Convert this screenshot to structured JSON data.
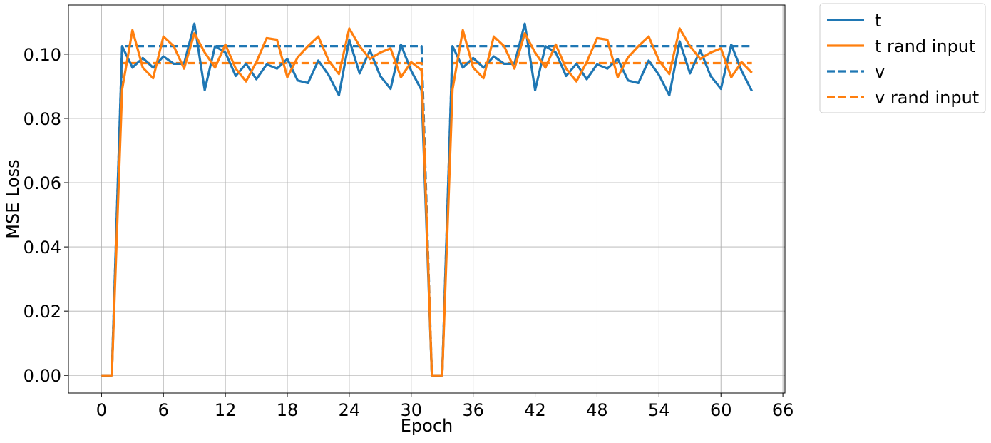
{
  "chart_data": {
    "type": "line",
    "title": "",
    "xlabel": "Epoch",
    "ylabel": "MSE Loss",
    "xlim": [
      -3.2,
      66.2
    ],
    "ylim": [
      -0.0055,
      0.1153
    ],
    "xticks": [
      0,
      6,
      12,
      18,
      24,
      30,
      36,
      42,
      48,
      54,
      60,
      66
    ],
    "xtick_labels": [
      "0",
      "6",
      "12",
      "18",
      "24",
      "30",
      "36",
      "42",
      "48",
      "54",
      "60",
      "66"
    ],
    "yticks": [
      0.0,
      0.02,
      0.04,
      0.06,
      0.08,
      0.1
    ],
    "ytick_labels": [
      "0.00",
      "0.02",
      "0.04",
      "0.06",
      "0.08",
      "0.10"
    ],
    "grid": true,
    "legend_position": "outside-top-right",
    "x": [
      0,
      1,
      2,
      3,
      4,
      5,
      6,
      7,
      8,
      9,
      10,
      11,
      12,
      13,
      14,
      15,
      16,
      17,
      18,
      19,
      20,
      21,
      22,
      23,
      24,
      25,
      26,
      27,
      28,
      29,
      30,
      31,
      32,
      33,
      34,
      35,
      36,
      37,
      38,
      39,
      40,
      41,
      42,
      43,
      44,
      45,
      46,
      47,
      48,
      49,
      50,
      51,
      52,
      53,
      54,
      55,
      56,
      57,
      58,
      59,
      60,
      61,
      62,
      63
    ],
    "series": [
      {
        "name": "t",
        "style": "solid",
        "color": "#1f77b4",
        "values": [
          0.0,
          0.0,
          0.1025,
          0.0958,
          0.0988,
          0.0958,
          0.0993,
          0.097,
          0.097,
          0.1095,
          0.0888,
          0.1025,
          0.1005,
          0.0932,
          0.097,
          0.0922,
          0.0968,
          0.0955,
          0.0985,
          0.0918,
          0.091,
          0.098,
          0.0935,
          0.0872,
          0.1045,
          0.094,
          0.1012,
          0.0932,
          0.0892,
          0.103,
          0.0948,
          0.0888,
          0.0,
          0.0,
          0.1025,
          0.0958,
          0.0988,
          0.0958,
          0.0993,
          0.097,
          0.097,
          0.1095,
          0.0888,
          0.1025,
          0.1005,
          0.0932,
          0.097,
          0.0922,
          0.0968,
          0.0955,
          0.0985,
          0.0918,
          0.091,
          0.098,
          0.0935,
          0.0872,
          0.104,
          0.094,
          0.1012,
          0.0932,
          0.0892,
          0.103,
          0.0948,
          0.0885
        ]
      },
      {
        "name": "t rand input",
        "style": "solid",
        "color": "#ff7f0e",
        "values": [
          0.0,
          0.0,
          0.089,
          0.1075,
          0.0958,
          0.0925,
          0.1055,
          0.1025,
          0.0955,
          0.1065,
          0.1005,
          0.0958,
          0.103,
          0.0955,
          0.0915,
          0.0975,
          0.105,
          0.1045,
          0.0928,
          0.099,
          0.1025,
          0.1055,
          0.098,
          0.0938,
          0.108,
          0.1025,
          0.0985,
          0.1005,
          0.1018,
          0.0928,
          0.0975,
          0.095,
          0.0,
          0.0,
          0.089,
          0.1075,
          0.0958,
          0.0925,
          0.1055,
          0.1025,
          0.0955,
          0.1065,
          0.1005,
          0.0958,
          0.103,
          0.0955,
          0.0915,
          0.0975,
          0.105,
          0.1045,
          0.0928,
          0.099,
          0.1025,
          0.1055,
          0.098,
          0.0938,
          0.108,
          0.1025,
          0.0985,
          0.1005,
          0.1018,
          0.0928,
          0.0975,
          0.0942
        ]
      },
      {
        "name": "v",
        "style": "dashed",
        "color": "#1f77b4",
        "values": [
          0.0,
          0.0,
          0.1025,
          0.1025,
          0.1025,
          0.1025,
          0.1025,
          0.1025,
          0.1025,
          0.1025,
          0.1025,
          0.1025,
          0.1025,
          0.1025,
          0.1025,
          0.1025,
          0.1025,
          0.1025,
          0.1025,
          0.1025,
          0.1025,
          0.1025,
          0.1025,
          0.1025,
          0.1025,
          0.1025,
          0.1025,
          0.1025,
          0.1025,
          0.1025,
          0.1025,
          0.1025,
          0.0,
          0.0,
          0.1025,
          0.1025,
          0.1025,
          0.1025,
          0.1025,
          0.1025,
          0.1025,
          0.1025,
          0.1025,
          0.1025,
          0.1025,
          0.1025,
          0.1025,
          0.1025,
          0.1025,
          0.1025,
          0.1025,
          0.1025,
          0.1025,
          0.1025,
          0.1025,
          0.1025,
          0.1025,
          0.1025,
          0.1025,
          0.1025,
          0.1025,
          0.1025,
          0.1025,
          0.1025
        ]
      },
      {
        "name": "v rand input",
        "style": "dashed",
        "color": "#ff7f0e",
        "values": [
          0.0,
          0.0,
          0.0972,
          0.0972,
          0.0972,
          0.0972,
          0.0972,
          0.0972,
          0.0972,
          0.0972,
          0.0972,
          0.0972,
          0.0972,
          0.0972,
          0.0972,
          0.0972,
          0.0972,
          0.0972,
          0.0972,
          0.0972,
          0.0972,
          0.0972,
          0.0972,
          0.0972,
          0.0972,
          0.0972,
          0.0972,
          0.0972,
          0.0972,
          0.0972,
          0.0972,
          0.0972,
          0.0,
          0.0,
          0.0972,
          0.0972,
          0.0972,
          0.0972,
          0.0972,
          0.0972,
          0.0972,
          0.0972,
          0.0972,
          0.0972,
          0.0972,
          0.0972,
          0.0972,
          0.0972,
          0.0972,
          0.0972,
          0.0972,
          0.0972,
          0.0972,
          0.0972,
          0.0972,
          0.0972,
          0.0972,
          0.0972,
          0.0972,
          0.0972,
          0.0972,
          0.0972,
          0.0972,
          0.0972
        ]
      }
    ]
  }
}
